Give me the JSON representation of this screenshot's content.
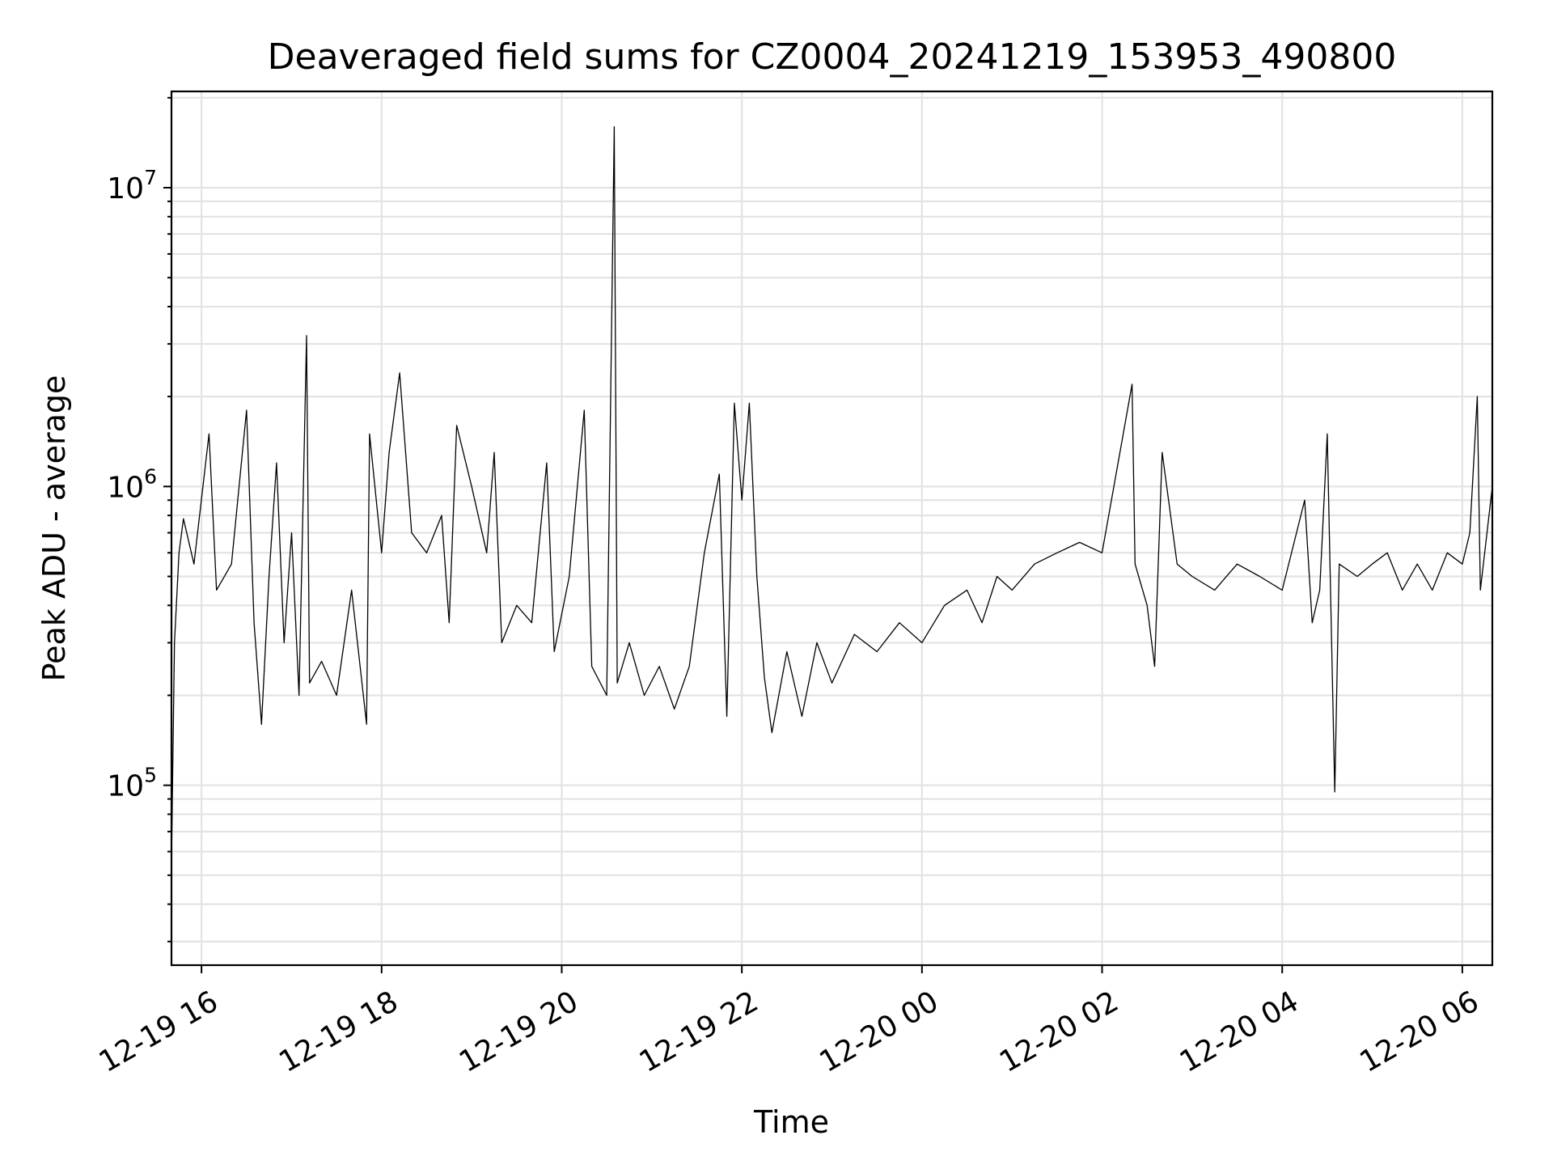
{
  "chart_data": {
    "type": "line",
    "title": "Deaveraged field sums for CZ0004_20241219_153953_490800",
    "xlabel": "Time",
    "ylabel": "Peak ADU - average",
    "yscale": "log",
    "grid": true,
    "x_range": [
      "2024-12-19 15:40",
      "2024-12-20 06:20"
    ],
    "ylim": [
      25000,
      21000000
    ],
    "x_ticks": [
      {
        "time": "2024-12-19 16:00",
        "label": "12-19 16"
      },
      {
        "time": "2024-12-19 18:00",
        "label": "12-19 18"
      },
      {
        "time": "2024-12-19 20:00",
        "label": "12-19 20"
      },
      {
        "time": "2024-12-19 22:00",
        "label": "12-19 22"
      },
      {
        "time": "2024-12-20 00:00",
        "label": "12-20 00"
      },
      {
        "time": "2024-12-20 02:00",
        "label": "12-20 02"
      },
      {
        "time": "2024-12-20 04:00",
        "label": "12-20 04"
      },
      {
        "time": "2024-12-20 06:00",
        "label": "12-20 06"
      }
    ],
    "y_ticks": [
      {
        "value": 100000,
        "base": "10",
        "exp": "5"
      },
      {
        "value": 1000000,
        "base": "10",
        "exp": "6"
      },
      {
        "value": 10000000,
        "base": "10",
        "exp": "7"
      }
    ],
    "series": [
      {
        "color": "#000000",
        "points": [
          [
            "2024-12-19 15:40",
            55000
          ],
          [
            "2024-12-19 15:42",
            300000
          ],
          [
            "2024-12-19 15:45",
            600000
          ],
          [
            "2024-12-19 15:48",
            780000
          ],
          [
            "2024-12-19 15:55",
            550000
          ],
          [
            "2024-12-19 16:05",
            1500000
          ],
          [
            "2024-12-19 16:10",
            450000
          ],
          [
            "2024-12-19 16:20",
            550000
          ],
          [
            "2024-12-19 16:30",
            1800000
          ],
          [
            "2024-12-19 16:35",
            350000
          ],
          [
            "2024-12-19 16:40",
            160000
          ],
          [
            "2024-12-19 16:45",
            500000
          ],
          [
            "2024-12-19 16:50",
            1200000
          ],
          [
            "2024-12-19 16:55",
            300000
          ],
          [
            "2024-12-19 17:00",
            700000
          ],
          [
            "2024-12-19 17:05",
            200000
          ],
          [
            "2024-12-19 17:10",
            3200000
          ],
          [
            "2024-12-19 17:12",
            220000
          ],
          [
            "2024-12-19 17:20",
            260000
          ],
          [
            "2024-12-19 17:30",
            200000
          ],
          [
            "2024-12-19 17:40",
            450000
          ],
          [
            "2024-12-19 17:50",
            160000
          ],
          [
            "2024-12-19 17:52",
            1500000
          ],
          [
            "2024-12-19 18:00",
            600000
          ],
          [
            "2024-12-19 18:05",
            1300000
          ],
          [
            "2024-12-19 18:12",
            2400000
          ],
          [
            "2024-12-19 18:20",
            700000
          ],
          [
            "2024-12-19 18:30",
            600000
          ],
          [
            "2024-12-19 18:40",
            800000
          ],
          [
            "2024-12-19 18:45",
            350000
          ],
          [
            "2024-12-19 18:50",
            1600000
          ],
          [
            "2024-12-19 19:00",
            1000000
          ],
          [
            "2024-12-19 19:10",
            600000
          ],
          [
            "2024-12-19 19:15",
            1300000
          ],
          [
            "2024-12-19 19:20",
            300000
          ],
          [
            "2024-12-19 19:30",
            400000
          ],
          [
            "2024-12-19 19:40",
            350000
          ],
          [
            "2024-12-19 19:50",
            1200000
          ],
          [
            "2024-12-19 19:55",
            280000
          ],
          [
            "2024-12-19 20:05",
            500000
          ],
          [
            "2024-12-19 20:15",
            1800000
          ],
          [
            "2024-12-19 20:20",
            250000
          ],
          [
            "2024-12-19 20:30",
            200000
          ],
          [
            "2024-12-19 20:35",
            16000000
          ],
          [
            "2024-12-19 20:37",
            220000
          ],
          [
            "2024-12-19 20:45",
            300000
          ],
          [
            "2024-12-19 20:55",
            200000
          ],
          [
            "2024-12-19 21:05",
            250000
          ],
          [
            "2024-12-19 21:15",
            180000
          ],
          [
            "2024-12-19 21:25",
            250000
          ],
          [
            "2024-12-19 21:35",
            600000
          ],
          [
            "2024-12-19 21:45",
            1100000
          ],
          [
            "2024-12-19 21:50",
            170000
          ],
          [
            "2024-12-19 21:55",
            1900000
          ],
          [
            "2024-12-19 22:00",
            900000
          ],
          [
            "2024-12-19 22:05",
            1900000
          ],
          [
            "2024-12-19 22:10",
            500000
          ],
          [
            "2024-12-19 22:15",
            230000
          ],
          [
            "2024-12-19 22:20",
            150000
          ],
          [
            "2024-12-19 22:30",
            280000
          ],
          [
            "2024-12-19 22:40",
            170000
          ],
          [
            "2024-12-19 22:50",
            300000
          ],
          [
            "2024-12-19 23:00",
            220000
          ],
          [
            "2024-12-19 23:15",
            320000
          ],
          [
            "2024-12-19 23:30",
            280000
          ],
          [
            "2024-12-19 23:45",
            350000
          ],
          [
            "2024-12-20 00:00",
            300000
          ],
          [
            "2024-12-20 00:15",
            400000
          ],
          [
            "2024-12-20 00:30",
            450000
          ],
          [
            "2024-12-20 00:40",
            350000
          ],
          [
            "2024-12-20 00:50",
            500000
          ],
          [
            "2024-12-20 01:00",
            450000
          ],
          [
            "2024-12-20 01:15",
            550000
          ],
          [
            "2024-12-20 01:30",
            600000
          ],
          [
            "2024-12-20 01:45",
            650000
          ],
          [
            "2024-12-20 02:00",
            600000
          ],
          [
            "2024-12-20 02:20",
            2200000
          ],
          [
            "2024-12-20 02:22",
            550000
          ],
          [
            "2024-12-20 02:30",
            400000
          ],
          [
            "2024-12-20 02:35",
            250000
          ],
          [
            "2024-12-20 02:40",
            1300000
          ],
          [
            "2024-12-20 02:50",
            550000
          ],
          [
            "2024-12-20 03:00",
            500000
          ],
          [
            "2024-12-20 03:15",
            450000
          ],
          [
            "2024-12-20 03:30",
            550000
          ],
          [
            "2024-12-20 03:45",
            500000
          ],
          [
            "2024-12-20 04:00",
            450000
          ],
          [
            "2024-12-20 04:15",
            900000
          ],
          [
            "2024-12-20 04:20",
            350000
          ],
          [
            "2024-12-20 04:25",
            450000
          ],
          [
            "2024-12-20 04:30",
            1500000
          ],
          [
            "2024-12-20 04:35",
            95000
          ],
          [
            "2024-12-20 04:38",
            550000
          ],
          [
            "2024-12-20 04:50",
            500000
          ],
          [
            "2024-12-20 05:00",
            550000
          ],
          [
            "2024-12-20 05:10",
            600000
          ],
          [
            "2024-12-20 05:20",
            450000
          ],
          [
            "2024-12-20 05:30",
            550000
          ],
          [
            "2024-12-20 05:40",
            450000
          ],
          [
            "2024-12-20 05:50",
            600000
          ],
          [
            "2024-12-20 06:00",
            550000
          ],
          [
            "2024-12-20 06:05",
            700000
          ],
          [
            "2024-12-20 06:10",
            2000000
          ],
          [
            "2024-12-20 06:12",
            450000
          ],
          [
            "2024-12-20 06:20",
            1000000
          ]
        ]
      }
    ]
  }
}
